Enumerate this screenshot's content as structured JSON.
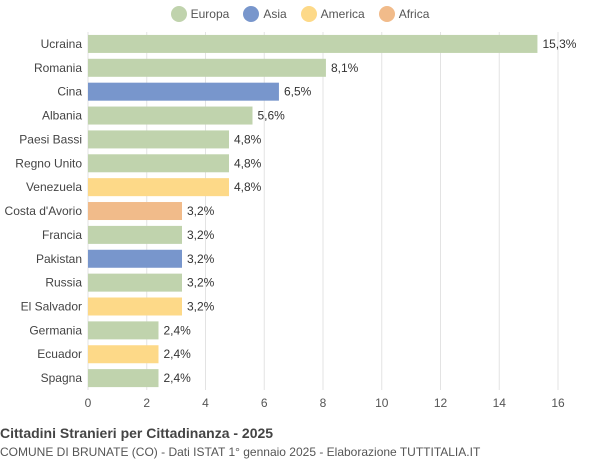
{
  "colors": {
    "Europa": "#c0d3ad",
    "Asia": "#7896cc",
    "America": "#fdd988",
    "Africa": "#f1bb8a"
  },
  "legend": [
    "Europa",
    "Asia",
    "America",
    "Africa"
  ],
  "chart_data": {
    "type": "bar",
    "orientation": "horizontal",
    "categories": [
      "Ucraina",
      "Romania",
      "Cina",
      "Albania",
      "Paesi Bassi",
      "Regno Unito",
      "Venezuela",
      "Costa d'Avorio",
      "Francia",
      "Pakistan",
      "Russia",
      "El Salvador",
      "Germania",
      "Ecuador",
      "Spagna"
    ],
    "values": [
      15.3,
      8.1,
      6.5,
      5.6,
      4.8,
      4.8,
      4.8,
      3.2,
      3.2,
      3.2,
      3.2,
      3.2,
      2.4,
      2.4,
      2.4
    ],
    "labels": [
      "15,3%",
      "8,1%",
      "6,5%",
      "5,6%",
      "4,8%",
      "4,8%",
      "4,8%",
      "3,2%",
      "3,2%",
      "3,2%",
      "3,2%",
      "3,2%",
      "2,4%",
      "2,4%",
      "2,4%"
    ],
    "groups": [
      "Europa",
      "Europa",
      "Asia",
      "Europa",
      "Europa",
      "Europa",
      "America",
      "Africa",
      "Europa",
      "Asia",
      "Europa",
      "America",
      "Europa",
      "America",
      "Europa"
    ],
    "xlim": [
      0,
      16
    ],
    "xticks": [
      0,
      2,
      4,
      6,
      8,
      10,
      12,
      14,
      16
    ],
    "grid": true,
    "legend_position": "top-center",
    "title": "Cittadini Stranieri per Cittadinanza - 2025",
    "subtitle": "COMUNE DI BRUNATE (CO) - Dati ISTAT 1° gennaio 2025 - Elaborazione TUTTITALIA.IT"
  }
}
